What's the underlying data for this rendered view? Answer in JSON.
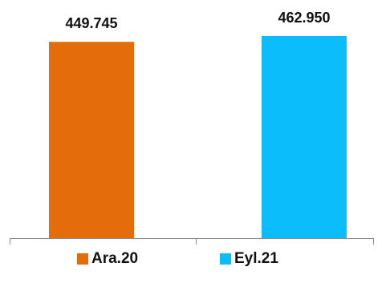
{
  "chart_data": {
    "type": "bar",
    "categories": [
      "Ara.20",
      "Eyl.21"
    ],
    "values": [
      449745,
      462950
    ],
    "value_labels": [
      "449.745",
      "462.950"
    ],
    "colors": [
      "#E46C0A",
      "#0BBDFB"
    ],
    "ylim": [
      0,
      462950
    ],
    "grid": false,
    "legend": {
      "position": "bottom",
      "entries": [
        "Ara.20",
        "Eyl.21"
      ]
    },
    "axis_color": "#8c8c8c"
  }
}
